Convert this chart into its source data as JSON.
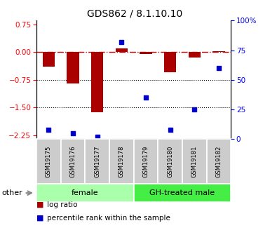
{
  "title": "GDS862 / 8.1.10.10",
  "samples": [
    "GSM19175",
    "GSM19176",
    "GSM19177",
    "GSM19178",
    "GSM19179",
    "GSM19180",
    "GSM19181",
    "GSM19182"
  ],
  "log_ratio": [
    -0.4,
    -0.85,
    -1.62,
    0.1,
    -0.05,
    -0.55,
    -0.15,
    0.02
  ],
  "percentile_rank": [
    8,
    5,
    2,
    82,
    35,
    8,
    25,
    60
  ],
  "groups": [
    {
      "label": "female",
      "start": 0,
      "end": 4,
      "color": "#aaffaa"
    },
    {
      "label": "GH-treated male",
      "start": 4,
      "end": 8,
      "color": "#44ee44"
    }
  ],
  "ylim_left": [
    -2.35,
    0.85
  ],
  "ylim_right": [
    0,
    100
  ],
  "yticks_left": [
    0.75,
    0,
    -0.75,
    -1.5,
    -2.25
  ],
  "yticks_right": [
    100,
    75,
    50,
    25,
    0
  ],
  "bar_color": "#aa0000",
  "scatter_color": "#0000cc",
  "dashed_line_color": "#cc0000",
  "legend_entries": [
    "log ratio",
    "percentile rank within the sample"
  ],
  "title_fontsize": 10,
  "tick_fontsize": 7.5,
  "sample_fontsize": 6,
  "group_fontsize": 8,
  "legend_fontsize": 7.5
}
